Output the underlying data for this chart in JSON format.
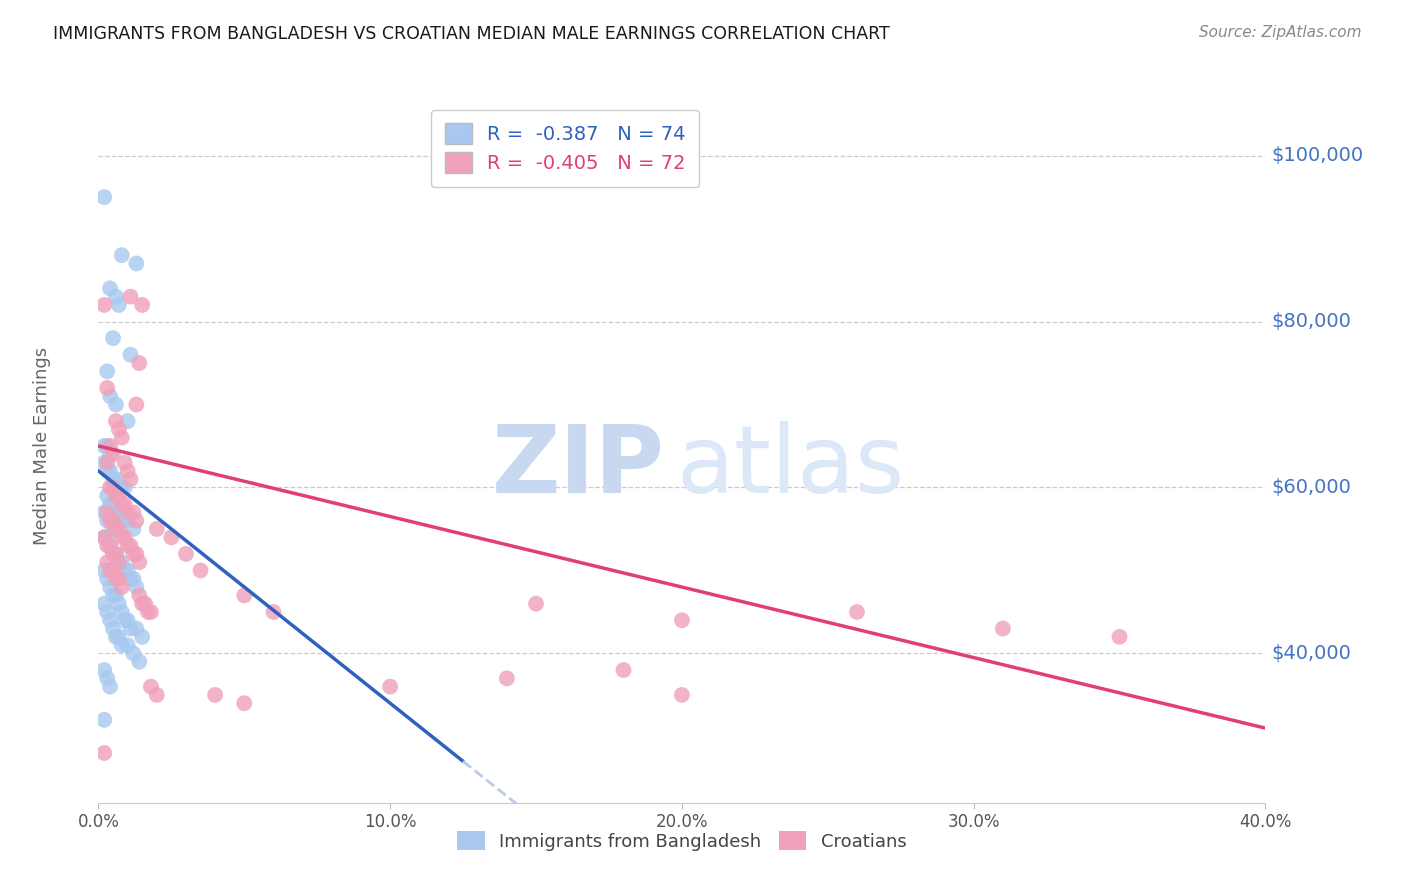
{
  "title": "IMMIGRANTS FROM BANGLADESH VS CROATIAN MEDIAN MALE EARNINGS CORRELATION CHART",
  "source": "Source: ZipAtlas.com",
  "ylabel": "Median Male Earnings",
  "xlim": [
    0.0,
    0.4
  ],
  "ylim": [
    22000,
    108000
  ],
  "ytick_values": [
    40000,
    60000,
    80000,
    100000
  ],
  "ytick_labels": [
    "$40,000",
    "$60,000",
    "$80,000",
    "$100,000"
  ],
  "xtick_values": [
    0.0,
    0.1,
    0.2,
    0.3,
    0.4
  ],
  "xtick_labels": [
    "0.0%",
    "10.0%",
    "20.0%",
    "30.0%",
    "40.0%"
  ],
  "scatter_blue_color": "#a8c8f0",
  "scatter_pink_color": "#f0a0b8",
  "line_blue_color": "#3060c0",
  "line_pink_color": "#e04070",
  "line_dashed_color": "#b8cce8",
  "watermark_zip_color": "#c8d8f0",
  "watermark_atlas_color": "#dce8f8",
  "background_color": "#ffffff",
  "grid_color": "#cccccc",
  "title_color": "#1a1a1a",
  "axis_label_color": "#666666",
  "ytick_color": "#4472c4",
  "legend1_text_color": "#3060c0",
  "legend2_text_color": "#e04070",
  "bangladesh_points": [
    [
      0.002,
      95000
    ],
    [
      0.008,
      88000
    ],
    [
      0.013,
      87000
    ],
    [
      0.004,
      84000
    ],
    [
      0.006,
      83000
    ],
    [
      0.007,
      82000
    ],
    [
      0.005,
      78000
    ],
    [
      0.011,
      76000
    ],
    [
      0.003,
      74000
    ],
    [
      0.004,
      71000
    ],
    [
      0.006,
      70000
    ],
    [
      0.01,
      68000
    ],
    [
      0.002,
      65000
    ],
    [
      0.003,
      65000
    ],
    [
      0.004,
      64000
    ],
    [
      0.002,
      63000
    ],
    [
      0.003,
      62000
    ],
    [
      0.004,
      62000
    ],
    [
      0.005,
      61000
    ],
    [
      0.006,
      61000
    ],
    [
      0.007,
      60000
    ],
    [
      0.008,
      60000
    ],
    [
      0.009,
      60000
    ],
    [
      0.003,
      59000
    ],
    [
      0.004,
      58000
    ],
    [
      0.005,
      58000
    ],
    [
      0.006,
      57000
    ],
    [
      0.007,
      57000
    ],
    [
      0.008,
      56000
    ],
    [
      0.01,
      56000
    ],
    [
      0.012,
      55000
    ],
    [
      0.002,
      57000
    ],
    [
      0.003,
      56000
    ],
    [
      0.004,
      56000
    ],
    [
      0.005,
      55000
    ],
    [
      0.002,
      54000
    ],
    [
      0.003,
      54000
    ],
    [
      0.004,
      53000
    ],
    [
      0.005,
      52000
    ],
    [
      0.006,
      52000
    ],
    [
      0.007,
      51000
    ],
    [
      0.008,
      51000
    ],
    [
      0.009,
      50000
    ],
    [
      0.01,
      50000
    ],
    [
      0.011,
      49000
    ],
    [
      0.012,
      49000
    ],
    [
      0.013,
      48000
    ],
    [
      0.002,
      50000
    ],
    [
      0.003,
      49000
    ],
    [
      0.004,
      48000
    ],
    [
      0.005,
      47000
    ],
    [
      0.006,
      47000
    ],
    [
      0.007,
      46000
    ],
    [
      0.008,
      45000
    ],
    [
      0.009,
      44000
    ],
    [
      0.01,
      44000
    ],
    [
      0.011,
      43000
    ],
    [
      0.013,
      43000
    ],
    [
      0.015,
      42000
    ],
    [
      0.002,
      46000
    ],
    [
      0.003,
      45000
    ],
    [
      0.004,
      44000
    ],
    [
      0.005,
      43000
    ],
    [
      0.006,
      42000
    ],
    [
      0.007,
      42000
    ],
    [
      0.008,
      41000
    ],
    [
      0.01,
      41000
    ],
    [
      0.012,
      40000
    ],
    [
      0.014,
      39000
    ],
    [
      0.002,
      38000
    ],
    [
      0.003,
      37000
    ],
    [
      0.004,
      36000
    ],
    [
      0.002,
      32000
    ]
  ],
  "croatian_points": [
    [
      0.002,
      82000
    ],
    [
      0.011,
      83000
    ],
    [
      0.015,
      82000
    ],
    [
      0.014,
      75000
    ],
    [
      0.003,
      72000
    ],
    [
      0.013,
      70000
    ],
    [
      0.006,
      68000
    ],
    [
      0.007,
      67000
    ],
    [
      0.008,
      66000
    ],
    [
      0.004,
      65000
    ],
    [
      0.005,
      64000
    ],
    [
      0.009,
      63000
    ],
    [
      0.003,
      63000
    ],
    [
      0.01,
      62000
    ],
    [
      0.011,
      61000
    ],
    [
      0.004,
      60000
    ],
    [
      0.005,
      60000
    ],
    [
      0.006,
      59000
    ],
    [
      0.007,
      59000
    ],
    [
      0.008,
      58000
    ],
    [
      0.009,
      58000
    ],
    [
      0.01,
      57000
    ],
    [
      0.012,
      57000
    ],
    [
      0.013,
      56000
    ],
    [
      0.003,
      57000
    ],
    [
      0.004,
      56000
    ],
    [
      0.005,
      56000
    ],
    [
      0.006,
      55000
    ],
    [
      0.007,
      55000
    ],
    [
      0.008,
      54000
    ],
    [
      0.009,
      54000
    ],
    [
      0.01,
      53000
    ],
    [
      0.011,
      53000
    ],
    [
      0.012,
      52000
    ],
    [
      0.013,
      52000
    ],
    [
      0.014,
      51000
    ],
    [
      0.002,
      54000
    ],
    [
      0.003,
      53000
    ],
    [
      0.004,
      53000
    ],
    [
      0.005,
      52000
    ],
    [
      0.006,
      52000
    ],
    [
      0.007,
      51000
    ],
    [
      0.003,
      51000
    ],
    [
      0.004,
      50000
    ],
    [
      0.005,
      50000
    ],
    [
      0.006,
      49000
    ],
    [
      0.007,
      49000
    ],
    [
      0.008,
      48000
    ],
    [
      0.014,
      47000
    ],
    [
      0.015,
      46000
    ],
    [
      0.016,
      46000
    ],
    [
      0.017,
      45000
    ],
    [
      0.018,
      45000
    ],
    [
      0.02,
      55000
    ],
    [
      0.025,
      54000
    ],
    [
      0.03,
      52000
    ],
    [
      0.035,
      50000
    ],
    [
      0.05,
      47000
    ],
    [
      0.06,
      45000
    ],
    [
      0.15,
      46000
    ],
    [
      0.2,
      44000
    ],
    [
      0.26,
      45000
    ],
    [
      0.31,
      43000
    ],
    [
      0.35,
      42000
    ],
    [
      0.018,
      36000
    ],
    [
      0.02,
      35000
    ],
    [
      0.04,
      35000
    ],
    [
      0.05,
      34000
    ],
    [
      0.1,
      36000
    ],
    [
      0.14,
      37000
    ],
    [
      0.18,
      38000
    ],
    [
      0.2,
      35000
    ],
    [
      0.002,
      28000
    ]
  ],
  "bd_line_x0": 0.0,
  "bd_line_x1": 0.125,
  "bd_line_y0": 62000,
  "bd_line_y1": 27000,
  "cr_line_x0": 0.0,
  "cr_line_x1": 0.4,
  "cr_line_y0": 65000,
  "cr_line_y1": 31000
}
